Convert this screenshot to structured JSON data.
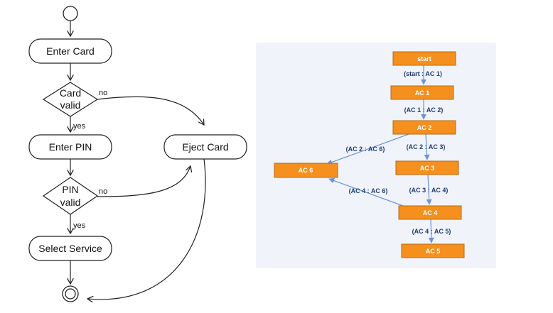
{
  "activity_diagram": {
    "nodes": {
      "enter_card": "Enter Card",
      "card_valid_line1": "Card",
      "card_valid_line2": "valid",
      "enter_pin": "Enter PIN",
      "pin_valid_line1": "PIN",
      "pin_valid_line2": "valid",
      "select_service": "Select Service",
      "eject_card": "Eject Card"
    },
    "guards": {
      "card_no": "no",
      "card_yes": "yes",
      "pin_no": "no",
      "pin_yes": "yes"
    }
  },
  "state_graph": {
    "background": "#f0f3fa",
    "node_fill": "#f5901e",
    "edge_color": "#6f93d6",
    "nodes": {
      "start": "start",
      "ac1": "AC 1",
      "ac2": "AC 2",
      "ac3": "AC 3",
      "ac4": "AC 4",
      "ac5": "AC 5",
      "ac6": "AC 6"
    },
    "edges": {
      "start_ac1": "(start : AC 1)",
      "ac1_ac2": "(AC 1 : AC 2)",
      "ac2_ac6": "(AC 2 : AC 6)",
      "ac2_ac3": "(AC 2 : AC 3)",
      "ac4_ac6": "(AC 4 : AC 6)",
      "ac3_ac4": "(AC 3 : AC 4)",
      "ac4_ac5": "(AC 4 : AC 5)"
    }
  }
}
